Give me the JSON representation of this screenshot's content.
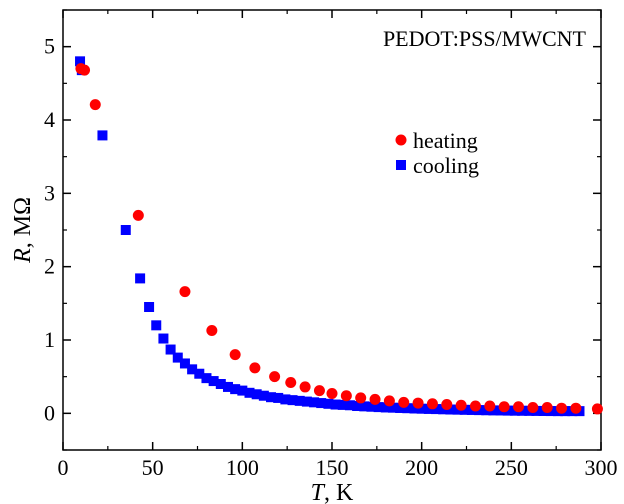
{
  "chart_data": {
    "type": "scatter",
    "annotation": "PEDOT:PSS/MWCNT",
    "xlabel_var": "T",
    "xlabel_unit": ", K",
    "ylabel_var": "R",
    "ylabel_unit": ", MΩ",
    "xlim": [
      0,
      300
    ],
    "ylim": [
      -0.5,
      5.5
    ],
    "x_ticks": [
      0,
      50,
      100,
      150,
      200,
      250,
      300
    ],
    "x_tick_labels": [
      "0",
      "50",
      "100",
      "150",
      "200",
      "250",
      "300"
    ],
    "y_ticks": [
      0,
      1,
      2,
      3,
      4,
      5
    ],
    "y_tick_labels": [
      "0",
      "1",
      "2",
      "3",
      "4",
      "5"
    ],
    "grid": false,
    "legend_position": "upper-right",
    "series": [
      {
        "name": "heating",
        "marker": "circle",
        "color": "#ff0000",
        "x": [
          10,
          12,
          18,
          42,
          68,
          83,
          96,
          107,
          118,
          127,
          135,
          143,
          150,
          158,
          166,
          174,
          182,
          190,
          198,
          206,
          214,
          222,
          230,
          238,
          246,
          254,
          262,
          270,
          278,
          286,
          298
        ],
        "y": [
          4.7,
          4.68,
          4.21,
          2.7,
          1.66,
          1.13,
          0.8,
          0.62,
          0.5,
          0.42,
          0.36,
          0.31,
          0.27,
          0.24,
          0.21,
          0.19,
          0.17,
          0.15,
          0.14,
          0.13,
          0.12,
          0.11,
          0.1,
          0.1,
          0.09,
          0.09,
          0.08,
          0.08,
          0.07,
          0.07,
          0.06
        ]
      },
      {
        "name": "cooling",
        "marker": "square",
        "color": "#0000ff",
        "x": [
          9.5,
          10.5,
          22,
          35,
          43,
          48,
          52,
          56,
          60,
          64,
          68,
          72,
          76,
          80,
          84,
          88,
          92,
          96,
          100,
          104,
          108,
          112,
          116,
          120,
          124,
          128,
          132,
          136,
          140,
          144,
          148,
          152,
          156,
          160,
          164,
          168,
          172,
          176,
          180,
          184,
          188,
          192,
          196,
          200,
          204,
          208,
          212,
          216,
          220,
          224,
          228,
          232,
          236,
          240,
          244,
          248,
          252,
          256,
          260,
          264,
          268,
          272,
          276,
          280,
          284,
          288
        ],
        "y": [
          4.8,
          4.68,
          3.79,
          2.5,
          1.84,
          1.45,
          1.2,
          1.02,
          0.87,
          0.76,
          0.68,
          0.6,
          0.54,
          0.48,
          0.44,
          0.4,
          0.36,
          0.33,
          0.31,
          0.28,
          0.26,
          0.24,
          0.22,
          0.21,
          0.19,
          0.18,
          0.17,
          0.16,
          0.15,
          0.14,
          0.13,
          0.12,
          0.115,
          0.11,
          0.1,
          0.095,
          0.09,
          0.085,
          0.08,
          0.077,
          0.073,
          0.07,
          0.066,
          0.063,
          0.06,
          0.058,
          0.055,
          0.052,
          0.05,
          0.048,
          0.046,
          0.044,
          0.042,
          0.04,
          0.039,
          0.037,
          0.036,
          0.035,
          0.034,
          0.033,
          0.032,
          0.031,
          0.03,
          0.03,
          0.03,
          0.03
        ]
      }
    ]
  }
}
